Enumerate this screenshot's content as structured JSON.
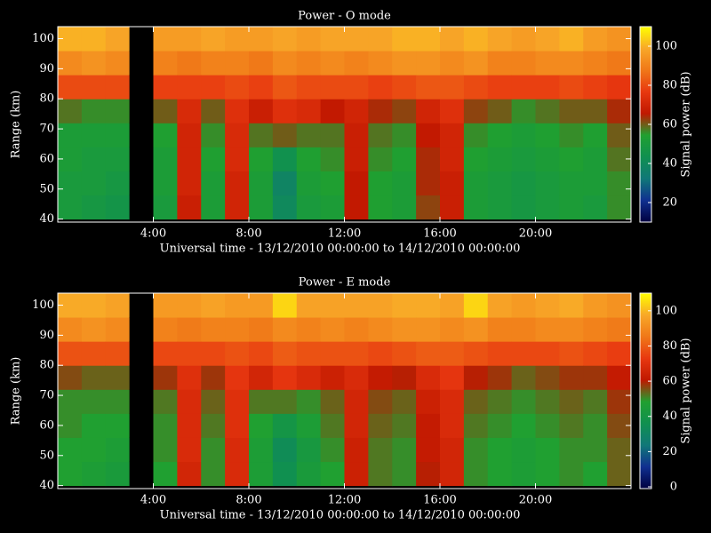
{
  "chart_data": [
    {
      "type": "heatmap",
      "title": "Power - O mode",
      "x_label": "Universal time - 13/12/2010 00:00:00 to 14/12/2010 00:00:00",
      "y_label": "Range (km)",
      "colorbar_label": "Signal power (dB)",
      "x_bins": [
        0,
        1,
        2,
        3,
        4,
        5,
        6,
        7,
        8,
        9,
        10,
        11,
        12,
        13,
        14,
        15,
        16,
        17,
        18,
        19,
        20,
        21,
        22,
        23,
        24
      ],
      "y_bins": [
        40,
        48,
        56,
        64,
        72,
        80,
        88,
        96,
        104
      ],
      "xlim": [
        0,
        24
      ],
      "ylim": [
        39,
        104
      ],
      "xticks": [
        {
          "value": 4,
          "label": "4:00"
        },
        {
          "value": 8,
          "label": "8:00"
        },
        {
          "value": 12,
          "label": "12:00"
        },
        {
          "value": 16,
          "label": "16:00"
        },
        {
          "value": 20,
          "label": "20:00"
        }
      ],
      "yticks": [
        40,
        50,
        60,
        70,
        80,
        90,
        100
      ],
      "clim": [
        10,
        110
      ],
      "cticks": [
        20,
        40,
        60,
        80,
        100
      ],
      "colorscale": [
        "#000040",
        "#103090",
        "#107878",
        "#109050",
        "#20a030",
        "#c01800",
        "#e83810",
        "#f07818",
        "#f8a828",
        "#ffff00"
      ],
      "missing_color": "#000000",
      "values": [
        [
          50,
          50,
          52,
          52,
          58,
          80,
          92,
          100
        ],
        [
          48,
          50,
          50,
          52,
          56,
          80,
          94,
          100
        ],
        [
          46,
          48,
          50,
          52,
          56,
          80,
          92,
          98
        ],
        [
          null,
          null,
          null,
          null,
          null,
          null,
          null,
          null
        ],
        [
          50,
          52,
          52,
          54,
          60,
          78,
          90,
          96
        ],
        [
          68,
          70,
          70,
          70,
          72,
          78,
          88,
          96
        ],
        [
          52,
          52,
          54,
          56,
          60,
          78,
          90,
          98
        ],
        [
          70,
          70,
          72,
          72,
          74,
          80,
          90,
          96
        ],
        [
          52,
          52,
          54,
          58,
          68,
          78,
          88,
          96
        ],
        [
          40,
          38,
          44,
          60,
          74,
          82,
          92,
          98
        ],
        [
          50,
          52,
          54,
          58,
          72,
          80,
          90,
          96
        ],
        [
          52,
          54,
          56,
          58,
          66,
          80,
          92,
          98
        ],
        [
          66,
          66,
          68,
          68,
          70,
          80,
          90,
          98
        ],
        [
          54,
          54,
          56,
          58,
          64,
          78,
          92,
          98
        ],
        [
          52,
          52,
          54,
          56,
          62,
          80,
          94,
          100
        ],
        [
          62,
          64,
          64,
          66,
          70,
          82,
          94,
          100
        ],
        [
          68,
          68,
          70,
          70,
          74,
          82,
          92,
          98
        ],
        [
          52,
          52,
          54,
          56,
          62,
          80,
          94,
          100
        ],
        [
          50,
          50,
          52,
          54,
          60,
          78,
          90,
          98
        ],
        [
          48,
          48,
          50,
          52,
          56,
          78,
          90,
          96
        ],
        [
          50,
          50,
          52,
          54,
          58,
          78,
          92,
          98
        ],
        [
          52,
          52,
          54,
          56,
          60,
          80,
          92,
          100
        ],
        [
          50,
          52,
          52,
          54,
          60,
          78,
          90,
          96
        ],
        [
          56,
          56,
          58,
          60,
          64,
          76,
          88,
          94
        ]
      ]
    },
    {
      "type": "heatmap",
      "title": "Power - E mode",
      "x_label": "Universal time - 13/12/2010 00:00:00 to 14/12/2010 00:00:00",
      "y_label": "Range (km)",
      "colorbar_label": "Signal power (dB)",
      "x_bins": [
        0,
        1,
        2,
        3,
        4,
        5,
        6,
        7,
        8,
        9,
        10,
        11,
        12,
        13,
        14,
        15,
        16,
        17,
        18,
        19,
        20,
        21,
        22,
        23,
        24
      ],
      "y_bins": [
        40,
        48,
        56,
        64,
        72,
        80,
        88,
        96,
        104
      ],
      "xlim": [
        0,
        24
      ],
      "ylim": [
        39,
        104
      ],
      "xticks": [
        {
          "value": 4,
          "label": "4:00"
        },
        {
          "value": 8,
          "label": "8:00"
        },
        {
          "value": 12,
          "label": "12:00"
        },
        {
          "value": 16,
          "label": "16:00"
        },
        {
          "value": 20,
          "label": "20:00"
        }
      ],
      "yticks": [
        40,
        50,
        60,
        70,
        80,
        90,
        100
      ],
      "clim": [
        -1,
        110
      ],
      "cticks": [
        0,
        20,
        40,
        60,
        80,
        100
      ],
      "colorscale": [
        "#000040",
        "#103090",
        "#107878",
        "#109050",
        "#20a030",
        "#c01800",
        "#e83810",
        "#f07818",
        "#f8a828",
        "#ffff00"
      ],
      "missing_color": "#000000",
      "values": [
        [
          48,
          48,
          50,
          50,
          56,
          78,
          90,
          98
        ],
        [
          46,
          48,
          48,
          50,
          54,
          78,
          92,
          98
        ],
        [
          44,
          46,
          48,
          50,
          54,
          78,
          90,
          96
        ],
        [
          null,
          null,
          null,
          null,
          null,
          null,
          null,
          null
        ],
        [
          48,
          50,
          50,
          52,
          58,
          76,
          88,
          94
        ],
        [
          66,
          68,
          68,
          68,
          70,
          76,
          86,
          94
        ],
        [
          50,
          50,
          52,
          54,
          58,
          76,
          88,
          96
        ],
        [
          68,
          68,
          70,
          70,
          72,
          78,
          88,
          94
        ],
        [
          46,
          46,
          48,
          52,
          66,
          76,
          86,
          94
        ],
        [
          36,
          34,
          40,
          52,
          72,
          80,
          90,
          104
        ],
        [
          44,
          42,
          46,
          50,
          68,
          78,
          88,
          96
        ],
        [
          48,
          50,
          52,
          54,
          64,
          78,
          90,
          96
        ],
        [
          64,
          64,
          66,
          66,
          68,
          78,
          88,
          96
        ],
        [
          52,
          52,
          54,
          56,
          62,
          76,
          90,
          96
        ],
        [
          50,
          50,
          52,
          54,
          60,
          78,
          92,
          98
        ],
        [
          60,
          62,
          62,
          64,
          68,
          80,
          92,
          98
        ],
        [
          66,
          66,
          68,
          68,
          72,
          80,
          90,
          96
        ],
        [
          50,
          50,
          52,
          54,
          60,
          78,
          92,
          104
        ],
        [
          48,
          48,
          50,
          52,
          58,
          76,
          88,
          96
        ],
        [
          46,
          46,
          48,
          50,
          54,
          76,
          88,
          94
        ],
        [
          48,
          48,
          50,
          52,
          56,
          76,
          90,
          96
        ],
        [
          50,
          50,
          52,
          54,
          58,
          78,
          90,
          98
        ],
        [
          48,
          50,
          50,
          52,
          58,
          76,
          88,
          94
        ],
        [
          54,
          54,
          56,
          58,
          62,
          74,
          86,
          92
        ]
      ]
    }
  ]
}
